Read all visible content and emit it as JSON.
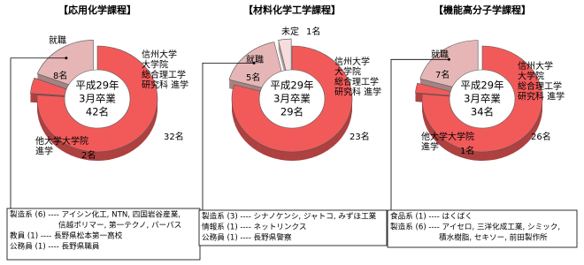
{
  "chart_data": [
    {
      "type": "pie",
      "title": "【応用化学課程】",
      "center_text": [
        "平成29年",
        "3月卒業",
        "42名"
      ],
      "categories": [
        "信州大学\n大学院\n総合理工学\n研究科 進学",
        "他大学大学院\n進学",
        "就職"
      ],
      "values": [
        32,
        2,
        8
      ],
      "value_labels": [
        "32名",
        "2名",
        "8名"
      ],
      "colors": [
        "#f25a5a",
        "#f25a5a",
        "#e6b6b6"
      ],
      "annotations": [
        "製造系 (6) ---- アイシン化工, NTN, 四国岩谷産業,",
        "信越ポリマー, 第一テクノ, パーパス",
        "教員 (1) ---- 長野県松本第一高校",
        "公務員 (1) ---- 長野県職員"
      ]
    },
    {
      "type": "pie",
      "title": "【材料化学工学課程】",
      "center_text": [
        "平成29年",
        "3月卒業",
        "29名"
      ],
      "categories": [
        "信州大学\n大学院\n総合理工学\n研究科 進学",
        "就職",
        "未定"
      ],
      "values": [
        23,
        5,
        1
      ],
      "value_labels": [
        "23名",
        "5名",
        "1名"
      ],
      "colors": [
        "#f25a5a",
        "#e6b6b6",
        "#f6dcdc"
      ],
      "annotations": [
        "製造系 (3) ---- シナノケンシ, ジャトコ, みずほ工業",
        "情報系 (1) ---- ネットリンクス",
        "公務員 (1) ---- 長野県警察"
      ]
    },
    {
      "type": "pie",
      "title": "【機能高分子学課程】",
      "center_text": [
        "平成29年",
        "3月卒業",
        "34名"
      ],
      "categories": [
        "信州大学\n大学院\n総合理工学\n研究科 進学",
        "他大学大学院\n進学",
        "就職"
      ],
      "values": [
        26,
        1,
        7
      ],
      "value_labels": [
        "26名",
        "1名",
        "7名"
      ],
      "colors": [
        "#f25a5a",
        "#f25a5a",
        "#e6b6b6"
      ],
      "annotations": [
        "食品系 (1) ---- はくばく",
        "製造系 (6) ---- アイセロ, 三洋化成工業, シミック,",
        "積水樹脂, セキソー, 前田製作所"
      ]
    }
  ]
}
